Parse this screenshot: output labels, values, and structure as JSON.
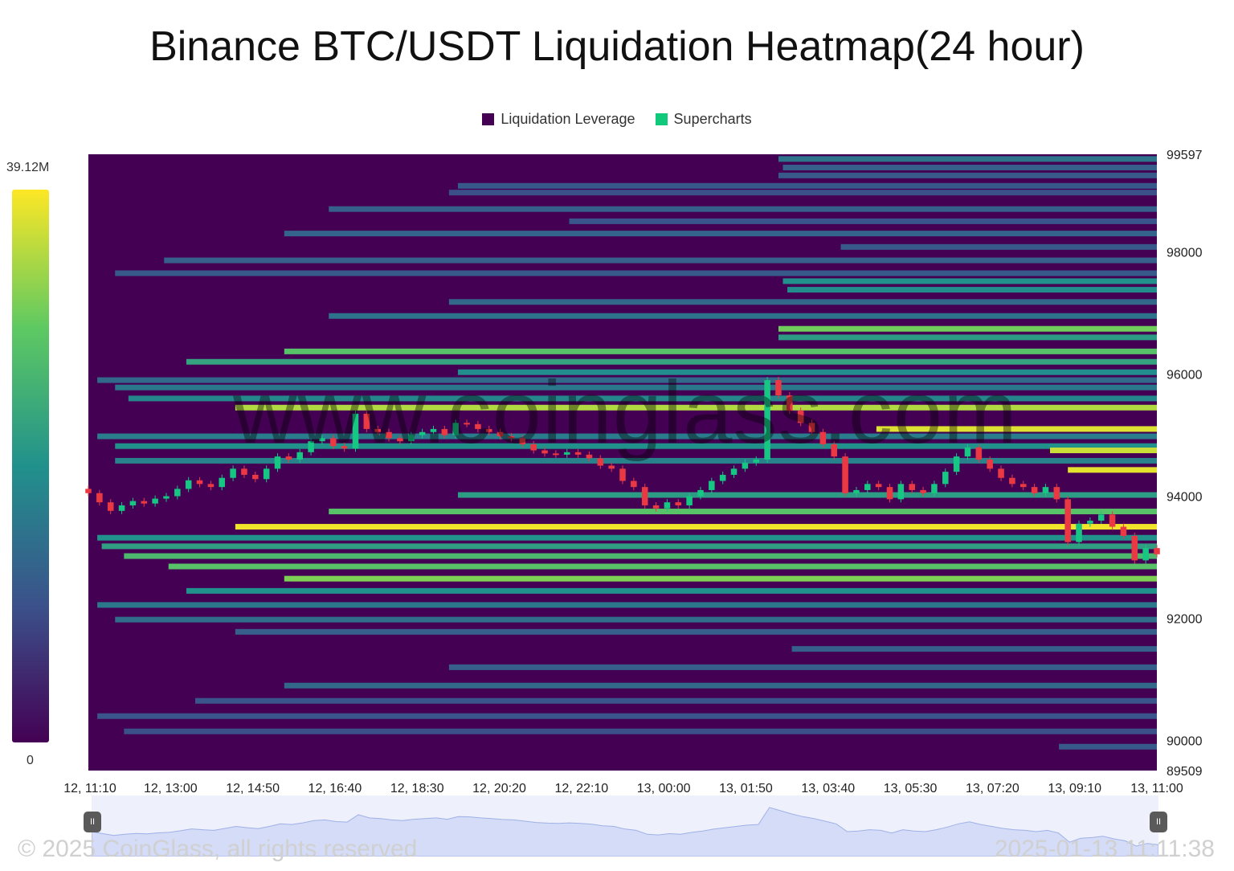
{
  "title": "Binance BTC/USDT Liquidation Heatmap(24 hour)",
  "legend": [
    {
      "label": "Liquidation Leverage",
      "color": "#440154"
    },
    {
      "label": "Supercharts",
      "color": "#10c97a"
    }
  ],
  "colorbar": {
    "max_label": "39.12M",
    "min_label": "0"
  },
  "watermark": "www.coinglass.com",
  "footer": {
    "copyright": "© 2025 CoinGlass, all rights reserved",
    "timestamp": "2025-01-13 11:11:38"
  },
  "navigator": {
    "start_handle": "II",
    "end_handle": "II"
  },
  "chart_data": {
    "type": "heatmap",
    "title": "Binance BTC/USDT Liquidation Heatmap(24 hour)",
    "x_tick_labels": [
      "12, 11:10",
      "12, 13:00",
      "12, 14:50",
      "12, 16:40",
      "12, 18:30",
      "12, 20:20",
      "12, 22:10",
      "13, 00:00",
      "13, 01:50",
      "13, 03:40",
      "13, 05:30",
      "13, 07:20",
      "13, 09:10",
      "13, 11:00"
    ],
    "y_tick_labels": [
      "99597",
      "98000",
      "96000",
      "94000",
      "92000",
      "90000",
      "89509"
    ],
    "y_ticks": [
      99597,
      98000,
      96000,
      94000,
      92000,
      90000,
      89509
    ],
    "ylim": [
      89509,
      99597
    ],
    "x_range_hours": [
      0,
      24
    ],
    "colorscale": {
      "min": 0,
      "max": 39.12,
      "unit": "M",
      "colors": [
        "#440154",
        "#3b528b",
        "#21918c",
        "#5ec962",
        "#fde725"
      ]
    },
    "liquidation_bands": [
      {
        "price": 99520,
        "start_h": 15.5,
        "intensity": 0.38
      },
      {
        "price": 99380,
        "start_h": 15.6,
        "intensity": 0.3
      },
      {
        "price": 99250,
        "start_h": 15.5,
        "intensity": 0.28
      },
      {
        "price": 99080,
        "start_h": 8.3,
        "intensity": 0.28
      },
      {
        "price": 98970,
        "start_h": 8.1,
        "intensity": 0.24
      },
      {
        "price": 98700,
        "start_h": 5.4,
        "intensity": 0.3
      },
      {
        "price": 98500,
        "start_h": 10.8,
        "intensity": 0.26
      },
      {
        "price": 98300,
        "start_h": 4.4,
        "intensity": 0.32
      },
      {
        "price": 98080,
        "start_h": 16.9,
        "intensity": 0.28
      },
      {
        "price": 97860,
        "start_h": 1.7,
        "intensity": 0.3
      },
      {
        "price": 97650,
        "start_h": 0.6,
        "intensity": 0.28
      },
      {
        "price": 97520,
        "start_h": 15.6,
        "intensity": 0.5
      },
      {
        "price": 97380,
        "start_h": 15.7,
        "intensity": 0.48
      },
      {
        "price": 97180,
        "start_h": 8.1,
        "intensity": 0.34
      },
      {
        "price": 96950,
        "start_h": 5.4,
        "intensity": 0.38
      },
      {
        "price": 96740,
        "start_h": 15.5,
        "intensity": 0.78
      },
      {
        "price": 96600,
        "start_h": 15.5,
        "intensity": 0.55
      },
      {
        "price": 96370,
        "start_h": 4.4,
        "intensity": 0.72
      },
      {
        "price": 96200,
        "start_h": 2.2,
        "intensity": 0.58
      },
      {
        "price": 96030,
        "start_h": 8.3,
        "intensity": 0.48
      },
      {
        "price": 95900,
        "start_h": 0.2,
        "intensity": 0.34
      },
      {
        "price": 95780,
        "start_h": 0.6,
        "intensity": 0.4
      },
      {
        "price": 95600,
        "start_h": 0.9,
        "intensity": 0.46
      },
      {
        "price": 95450,
        "start_h": 3.3,
        "intensity": 0.88
      },
      {
        "price": 95100,
        "start_h": 17.7,
        "intensity": 0.95
      },
      {
        "price": 94980,
        "start_h": 0.2,
        "intensity": 0.42
      },
      {
        "price": 94820,
        "start_h": 0.6,
        "intensity": 0.5
      },
      {
        "price": 94750,
        "start_h": 21.6,
        "intensity": 0.92
      },
      {
        "price": 94580,
        "start_h": 0.6,
        "intensity": 0.44
      },
      {
        "price": 94430,
        "start_h": 22.0,
        "intensity": 0.96
      },
      {
        "price": 94020,
        "start_h": 8.3,
        "intensity": 0.55
      },
      {
        "price": 93750,
        "start_h": 5.4,
        "intensity": 0.72
      },
      {
        "price": 93500,
        "start_h": 3.3,
        "intensity": 0.98
      },
      {
        "price": 93320,
        "start_h": 0.2,
        "intensity": 0.5
      },
      {
        "price": 93180,
        "start_h": 0.3,
        "intensity": 0.56
      },
      {
        "price": 93020,
        "start_h": 0.8,
        "intensity": 0.68
      },
      {
        "price": 92850,
        "start_h": 1.8,
        "intensity": 0.72
      },
      {
        "price": 92650,
        "start_h": 4.4,
        "intensity": 0.8
      },
      {
        "price": 92450,
        "start_h": 2.2,
        "intensity": 0.5
      },
      {
        "price": 92220,
        "start_h": 0.2,
        "intensity": 0.4
      },
      {
        "price": 91980,
        "start_h": 0.6,
        "intensity": 0.36
      },
      {
        "price": 91780,
        "start_h": 3.3,
        "intensity": 0.3
      },
      {
        "price": 91500,
        "start_h": 15.8,
        "intensity": 0.3
      },
      {
        "price": 91200,
        "start_h": 8.1,
        "intensity": 0.3
      },
      {
        "price": 90900,
        "start_h": 4.4,
        "intensity": 0.34
      },
      {
        "price": 90650,
        "start_h": 2.4,
        "intensity": 0.26
      },
      {
        "price": 90400,
        "start_h": 0.2,
        "intensity": 0.26
      },
      {
        "price": 90150,
        "start_h": 0.8,
        "intensity": 0.24
      },
      {
        "price": 89900,
        "start_h": 21.8,
        "intensity": 0.28
      }
    ],
    "price_candles": [
      {
        "t": 0.0,
        "o": 94120,
        "c": 94050
      },
      {
        "t": 0.25,
        "o": 94050,
        "c": 93900
      },
      {
        "t": 0.5,
        "o": 93900,
        "c": 93760
      },
      {
        "t": 0.75,
        "o": 93760,
        "c": 93850
      },
      {
        "t": 1.0,
        "o": 93850,
        "c": 93920
      },
      {
        "t": 1.25,
        "o": 93920,
        "c": 93880
      },
      {
        "t": 1.5,
        "o": 93880,
        "c": 93960
      },
      {
        "t": 1.75,
        "o": 93960,
        "c": 94000
      },
      {
        "t": 2.0,
        "o": 94000,
        "c": 94120
      },
      {
        "t": 2.25,
        "o": 94120,
        "c": 94260
      },
      {
        "t": 2.5,
        "o": 94260,
        "c": 94200
      },
      {
        "t": 2.75,
        "o": 94200,
        "c": 94150
      },
      {
        "t": 3.0,
        "o": 94150,
        "c": 94300
      },
      {
        "t": 3.25,
        "o": 94300,
        "c": 94450
      },
      {
        "t": 3.5,
        "o": 94450,
        "c": 94350
      },
      {
        "t": 3.75,
        "o": 94350,
        "c": 94280
      },
      {
        "t": 4.0,
        "o": 94280,
        "c": 94450
      },
      {
        "t": 4.25,
        "o": 94450,
        "c": 94650
      },
      {
        "t": 4.5,
        "o": 94650,
        "c": 94600
      },
      {
        "t": 4.75,
        "o": 94600,
        "c": 94720
      },
      {
        "t": 5.0,
        "o": 94720,
        "c": 94900
      },
      {
        "t": 5.25,
        "o": 94900,
        "c": 94950
      },
      {
        "t": 5.5,
        "o": 94950,
        "c": 94820
      },
      {
        "t": 5.75,
        "o": 94820,
        "c": 94780
      },
      {
        "t": 6.0,
        "o": 94780,
        "c": 95350
      },
      {
        "t": 6.25,
        "o": 95350,
        "c": 95100
      },
      {
        "t": 6.5,
        "o": 95100,
        "c": 95050
      },
      {
        "t": 6.75,
        "o": 95050,
        "c": 94950
      },
      {
        "t": 7.0,
        "o": 94950,
        "c": 94900
      },
      {
        "t": 7.25,
        "o": 94900,
        "c": 95000
      },
      {
        "t": 7.5,
        "o": 95000,
        "c": 95050
      },
      {
        "t": 7.75,
        "o": 95050,
        "c": 95100
      },
      {
        "t": 8.0,
        "o": 95100,
        "c": 95000
      },
      {
        "t": 8.25,
        "o": 95000,
        "c": 95200
      },
      {
        "t": 8.5,
        "o": 95200,
        "c": 95180
      },
      {
        "t": 8.75,
        "o": 95180,
        "c": 95100
      },
      {
        "t": 9.0,
        "o": 95100,
        "c": 95050
      },
      {
        "t": 9.25,
        "o": 95050,
        "c": 94980
      },
      {
        "t": 9.5,
        "o": 94980,
        "c": 94950
      },
      {
        "t": 9.75,
        "o": 94950,
        "c": 94850
      },
      {
        "t": 10.0,
        "o": 94850,
        "c": 94750
      },
      {
        "t": 10.25,
        "o": 94750,
        "c": 94700
      },
      {
        "t": 10.5,
        "o": 94700,
        "c": 94680
      },
      {
        "t": 10.75,
        "o": 94680,
        "c": 94720
      },
      {
        "t": 11.0,
        "o": 94720,
        "c": 94680
      },
      {
        "t": 11.25,
        "o": 94680,
        "c": 94620
      },
      {
        "t": 11.5,
        "o": 94620,
        "c": 94500
      },
      {
        "t": 11.75,
        "o": 94500,
        "c": 94450
      },
      {
        "t": 12.0,
        "o": 94450,
        "c": 94250
      },
      {
        "t": 12.25,
        "o": 94250,
        "c": 94150
      },
      {
        "t": 12.5,
        "o": 94150,
        "c": 93850
      },
      {
        "t": 12.75,
        "o": 93850,
        "c": 93800
      },
      {
        "t": 13.0,
        "o": 93800,
        "c": 93900
      },
      {
        "t": 13.25,
        "o": 93900,
        "c": 93850
      },
      {
        "t": 13.5,
        "o": 93850,
        "c": 94000
      },
      {
        "t": 13.75,
        "o": 94000,
        "c": 94100
      },
      {
        "t": 14.0,
        "o": 94100,
        "c": 94250
      },
      {
        "t": 14.25,
        "o": 94250,
        "c": 94350
      },
      {
        "t": 14.5,
        "o": 94350,
        "c": 94450
      },
      {
        "t": 14.75,
        "o": 94450,
        "c": 94550
      },
      {
        "t": 15.0,
        "o": 94550,
        "c": 94600
      },
      {
        "t": 15.25,
        "o": 94600,
        "c": 95900
      },
      {
        "t": 15.5,
        "o": 95900,
        "c": 95650
      },
      {
        "t": 15.75,
        "o": 95650,
        "c": 95400
      },
      {
        "t": 16.0,
        "o": 95400,
        "c": 95200
      },
      {
        "t": 16.25,
        "o": 95200,
        "c": 95050
      },
      {
        "t": 16.5,
        "o": 95050,
        "c": 94850
      },
      {
        "t": 16.75,
        "o": 94850,
        "c": 94650
      },
      {
        "t": 17.0,
        "o": 94650,
        "c": 94050
      },
      {
        "t": 17.25,
        "o": 94050,
        "c": 94100
      },
      {
        "t": 17.5,
        "o": 94100,
        "c": 94200
      },
      {
        "t": 17.75,
        "o": 94200,
        "c": 94150
      },
      {
        "t": 18.0,
        "o": 94150,
        "c": 93950
      },
      {
        "t": 18.25,
        "o": 93950,
        "c": 94200
      },
      {
        "t": 18.5,
        "o": 94200,
        "c": 94100
      },
      {
        "t": 18.75,
        "o": 94100,
        "c": 94050
      },
      {
        "t": 19.0,
        "o": 94050,
        "c": 94200
      },
      {
        "t": 19.25,
        "o": 94200,
        "c": 94400
      },
      {
        "t": 19.5,
        "o": 94400,
        "c": 94650
      },
      {
        "t": 19.75,
        "o": 94650,
        "c": 94800
      },
      {
        "t": 20.0,
        "o": 94800,
        "c": 94600
      },
      {
        "t": 20.25,
        "o": 94600,
        "c": 94450
      },
      {
        "t": 20.5,
        "o": 94450,
        "c": 94300
      },
      {
        "t": 20.75,
        "o": 94300,
        "c": 94200
      },
      {
        "t": 21.0,
        "o": 94200,
        "c": 94150
      },
      {
        "t": 21.25,
        "o": 94150,
        "c": 94050
      },
      {
        "t": 21.5,
        "o": 94050,
        "c": 94150
      },
      {
        "t": 21.75,
        "o": 94150,
        "c": 93950
      },
      {
        "t": 22.0,
        "o": 93950,
        "c": 93250
      },
      {
        "t": 22.25,
        "o": 93250,
        "c": 93550
      },
      {
        "t": 22.5,
        "o": 93550,
        "c": 93600
      },
      {
        "t": 22.75,
        "o": 93600,
        "c": 93700
      },
      {
        "t": 23.0,
        "o": 93700,
        "c": 93500
      },
      {
        "t": 23.25,
        "o": 93500,
        "c": 93350
      },
      {
        "t": 23.5,
        "o": 93350,
        "c": 92950
      },
      {
        "t": 23.75,
        "o": 92950,
        "c": 93150
      },
      {
        "t": 24.0,
        "o": 93150,
        "c": 93050
      }
    ]
  }
}
